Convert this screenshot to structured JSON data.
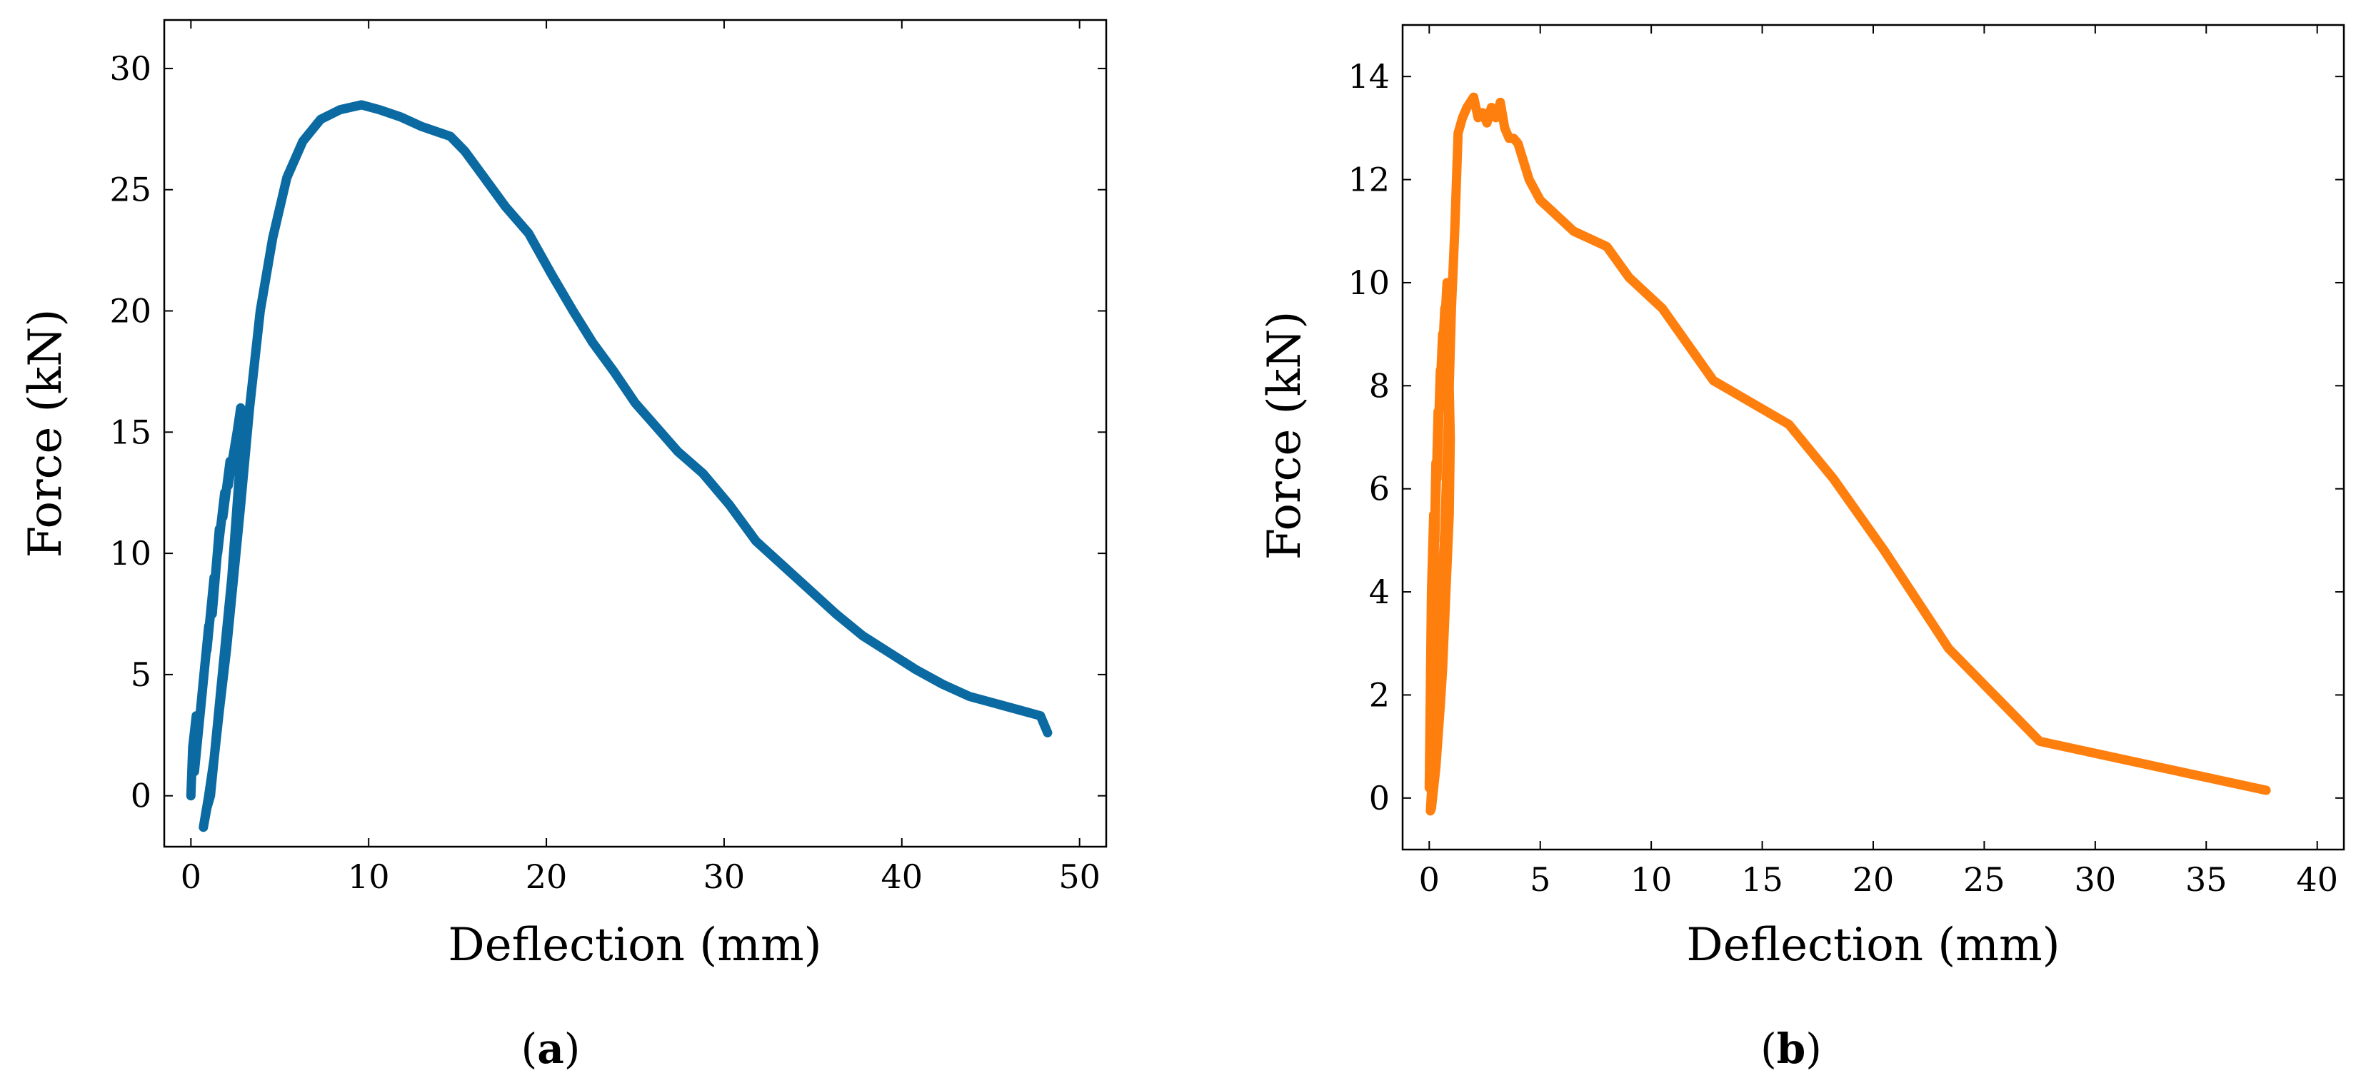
{
  "chart_data": [
    {
      "type": "line",
      "panel_label": "a",
      "xlabel": "Deflection (mm)",
      "ylabel": "Force (kN)",
      "xlim": [
        -1.5,
        51.5
      ],
      "ylim": [
        -2.1,
        32
      ],
      "xticks": [
        0,
        10,
        20,
        30,
        40,
        50
      ],
      "yticks": [
        0,
        5,
        10,
        15,
        20,
        25,
        30
      ],
      "color": "#0a6aa1",
      "series": [
        {
          "name": "(a)",
          "x": [
            0,
            0.1,
            0.3,
            0.2,
            0.6,
            0.4,
            0.8,
            0.6,
            1.0,
            0.9,
            1.3,
            1.2,
            1.6,
            1.5,
            1.9,
            1.8,
            2.2,
            2.1,
            2.6,
            2.4,
            2.8,
            2.9,
            2.7,
            2.5,
            2.3,
            2.1,
            1.9,
            1.7,
            1.5,
            1.3,
            1.1,
            0.9,
            0.7,
            1.0,
            1.3,
            1.6,
            2.0,
            2.4,
            2.8,
            3.3,
            3.9,
            4.6,
            5.4,
            6.3,
            7.3,
            8.4,
            9.6,
            10.6,
            11.8,
            13.0,
            13.8,
            14.6,
            15.4,
            16.5,
            17.7,
            19.0,
            20.3,
            21.5,
            22.6,
            23.8,
            25.0,
            26.2,
            27.4,
            28.8,
            30.3,
            31.8,
            33.3,
            34.8,
            36.3,
            37.8,
            39.3,
            40.8,
            42.3,
            43.8,
            45.3,
            46.8,
            47.8,
            48.2
          ],
          "y": [
            0.0,
            2.0,
            3.3,
            1.0,
            4.0,
            2.5,
            5.5,
            4.0,
            7.0,
            6.0,
            9.0,
            7.5,
            11.0,
            10.0,
            12.5,
            11.5,
            13.8,
            12.8,
            15.0,
            14.0,
            16.0,
            15.0,
            13.0,
            11.0,
            9.0,
            7.5,
            6.0,
            4.5,
            3.0,
            1.5,
            0.0,
            -0.5,
            -1.3,
            0.0,
            1.5,
            3.5,
            6.0,
            9.0,
            12.0,
            16.0,
            20.0,
            23.0,
            25.5,
            27.0,
            27.9,
            28.3,
            28.5,
            28.3,
            28.0,
            27.6,
            27.4,
            27.2,
            26.6,
            25.5,
            24.3,
            23.2,
            21.5,
            20.0,
            18.7,
            17.5,
            16.2,
            15.2,
            14.2,
            13.3,
            12.0,
            10.5,
            9.5,
            8.5,
            7.5,
            6.6,
            5.9,
            5.2,
            4.6,
            4.1,
            3.8,
            3.5,
            3.3,
            2.6
          ]
        }
      ]
    },
    {
      "type": "line",
      "panel_label": "b",
      "xlabel": "Deflection (mm)",
      "ylabel": "Force (kN)",
      "xlim": [
        -1.2,
        41.2
      ],
      "ylim": [
        -1.0,
        15.0
      ],
      "xticks": [
        0,
        5,
        10,
        15,
        20,
        25,
        30,
        35,
        40
      ],
      "yticks": [
        0,
        2,
        4,
        6,
        8,
        10,
        12,
        14
      ],
      "color": "#ff7f0e",
      "series": [
        {
          "name": "(b)",
          "x": [
            0,
            0.1,
            0.2,
            0.15,
            0.3,
            0.25,
            0.4,
            0.35,
            0.5,
            0.45,
            0.6,
            0.55,
            0.7,
            0.65,
            0.8,
            0.75,
            0.9,
            0.85,
            0.95,
            0.9,
            0.8,
            0.7,
            0.6,
            0.5,
            0.4,
            0.3,
            0.2,
            0.1,
            0.05,
            0.15,
            0.3,
            0.5,
            0.7,
            0.85,
            1.0,
            1.15,
            1.3,
            1.5,
            1.7,
            2.0,
            2.2,
            2.4,
            2.6,
            2.8,
            3.0,
            3.2,
            3.4,
            3.6,
            3.8,
            4.0,
            4.5,
            5.0,
            6.5,
            8.0,
            9.0,
            10.5,
            12.8,
            16.2,
            18.2,
            20.5,
            23.4,
            27.5,
            37.7
          ],
          "y": [
            0.2,
            4.0,
            5.5,
            3.0,
            6.5,
            5.0,
            7.5,
            6.2,
            8.3,
            7.5,
            9.0,
            8.2,
            9.5,
            8.8,
            10.0,
            9.3,
            9.6,
            9.0,
            7.0,
            5.5,
            4.5,
            3.5,
            2.5,
            1.8,
            1.2,
            0.6,
            0.2,
            -0.2,
            -0.25,
            0.5,
            1.8,
            3.5,
            5.2,
            7.2,
            9.5,
            11.0,
            12.9,
            13.2,
            13.4,
            13.6,
            13.2,
            13.3,
            13.1,
            13.4,
            13.2,
            13.5,
            13.0,
            12.8,
            12.8,
            12.7,
            12.0,
            11.6,
            11.0,
            10.7,
            10.1,
            9.5,
            8.1,
            7.25,
            6.2,
            4.8,
            2.9,
            1.1,
            0.15
          ]
        }
      ]
    }
  ]
}
